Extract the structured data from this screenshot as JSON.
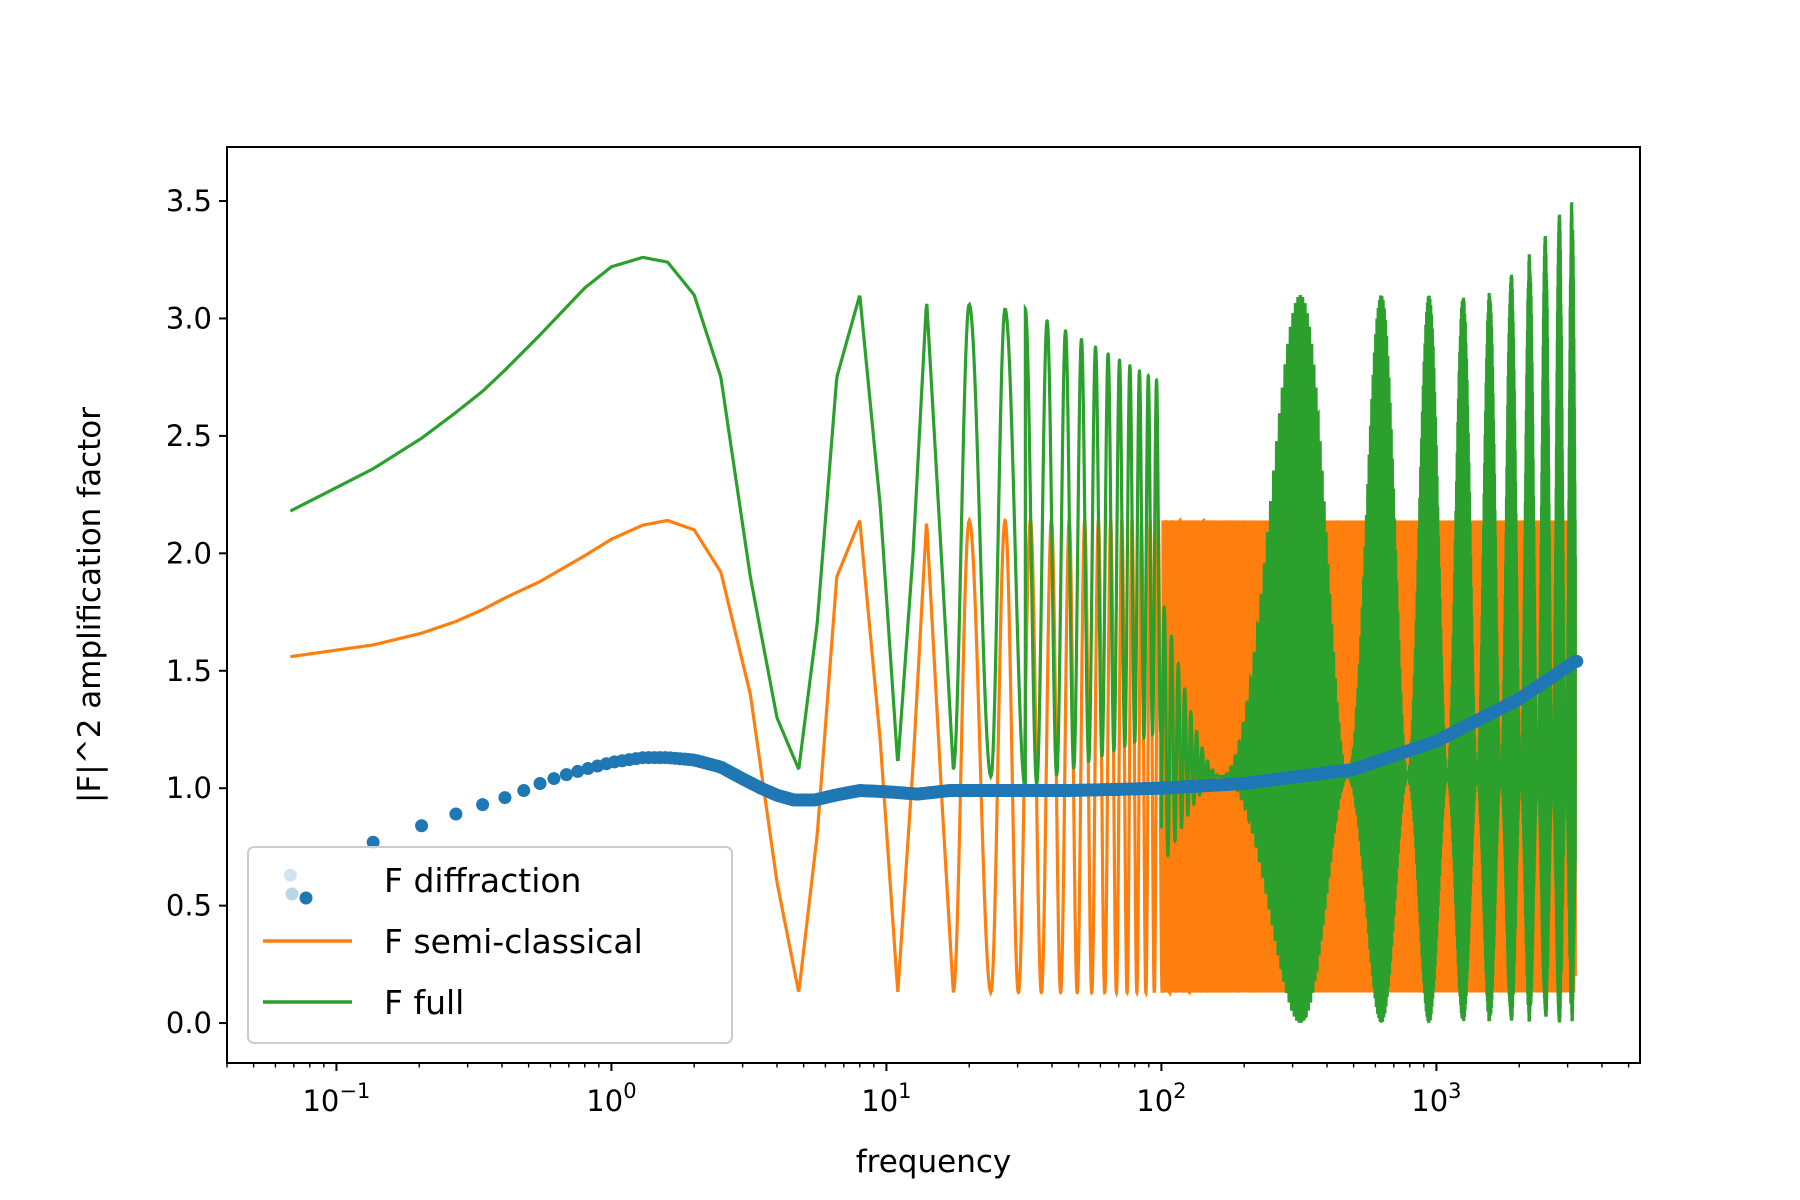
{
  "chart_data": {
    "type": "line",
    "xlabel": "frequency",
    "ylabel": "|F|^2 amplification factor",
    "x_scale": "log",
    "xlim": [
      0.04,
      5500
    ],
    "ylim": [
      -0.17,
      3.73
    ],
    "grid": false,
    "legend_position": "lower-left",
    "y_ticks": [
      "0.0",
      "0.5",
      "1.0",
      "1.5",
      "2.0",
      "2.5",
      "3.0",
      "3.5"
    ],
    "y_tick_values": [
      0.0,
      0.5,
      1.0,
      1.5,
      2.0,
      2.5,
      3.0,
      3.5
    ],
    "x_ticks": [
      {
        "value": 0.1,
        "base": "10",
        "exp": "−1"
      },
      {
        "value": 1,
        "base": "10",
        "exp": "0"
      },
      {
        "value": 10,
        "base": "10",
        "exp": "1"
      },
      {
        "value": 100,
        "base": "10",
        "exp": "2"
      },
      {
        "value": 1000,
        "base": "10",
        "exp": "3"
      }
    ],
    "x_range": [
      0.068,
      3200
    ],
    "series": [
      {
        "name": "F diffraction",
        "style": "markers",
        "color": "#1f77b4",
        "x": [
          0.068,
          0.136,
          0.204,
          0.272,
          0.34,
          0.41,
          0.48,
          0.55,
          0.65,
          0.8,
          1.0,
          1.3,
          1.6,
          2.0,
          2.5,
          3.0,
          3.5,
          4.0,
          4.6,
          5.5,
          6.5,
          8.0,
          10,
          13,
          17,
          22,
          30,
          45,
          70,
          100,
          200,
          500,
          1000,
          2000,
          3200
        ],
        "y": [
          0.63,
          0.77,
          0.84,
          0.89,
          0.93,
          0.96,
          0.99,
          1.02,
          1.05,
          1.08,
          1.11,
          1.13,
          1.13,
          1.12,
          1.09,
          1.04,
          1.0,
          0.97,
          0.95,
          0.95,
          0.97,
          0.99,
          0.985,
          0.975,
          0.99,
          0.99,
          0.99,
          0.99,
          0.995,
          1.0,
          1.02,
          1.08,
          1.2,
          1.38,
          1.54
        ]
      },
      {
        "name": "F semi-classical",
        "style": "line",
        "color": "#ff7f0e",
        "x": [
          0.068,
          0.136,
          0.204,
          0.272,
          0.34,
          0.41,
          0.55,
          0.8,
          1.0,
          1.3,
          1.6,
          2.0,
          2.5,
          3.2,
          4.0,
          4.8,
          5.6,
          6.6,
          8.0,
          9.5,
          11,
          12.5,
          14,
          16,
          17.5,
          20,
          24,
          27,
          32,
          40,
          60,
          100,
          200,
          500,
          1000,
          3200
        ],
        "y": [
          1.56,
          1.61,
          1.66,
          1.71,
          1.76,
          1.81,
          1.88,
          1.99,
          2.06,
          2.12,
          2.14,
          2.1,
          1.92,
          1.4,
          0.6,
          0.13,
          0.8,
          1.9,
          2.14,
          1.2,
          0.13,
          1.1,
          2.14,
          0.9,
          0.13,
          2.14,
          0.13,
          2.14,
          0.13,
          2.14,
          0.13,
          2.14,
          0.13,
          2.14,
          0.13,
          2.14
        ]
      },
      {
        "name": "F full",
        "style": "line",
        "color": "#2ca02c",
        "x": [
          0.068,
          0.136,
          0.204,
          0.272,
          0.34,
          0.41,
          0.55,
          0.8,
          1.0,
          1.3,
          1.6,
          2.0,
          2.5,
          3.2,
          4.0,
          4.8,
          5.6,
          6.6,
          8.0,
          9.5,
          11,
          12.5,
          14,
          16,
          17.5,
          20,
          24,
          27,
          32,
          100,
          210,
          320,
          420,
          630,
          1000,
          1500,
          2000,
          2500,
          3000,
          3200
        ],
        "y": [
          2.18,
          2.36,
          2.49,
          2.6,
          2.69,
          2.78,
          2.93,
          3.13,
          3.22,
          3.26,
          3.24,
          3.1,
          2.75,
          1.9,
          1.3,
          1.08,
          1.7,
          2.75,
          3.1,
          2.2,
          1.1,
          2.0,
          3.08,
          1.9,
          1.08,
          3.06,
          1.05,
          3.04,
          1.0,
          2.3,
          0.05,
          3.11,
          0.0,
          3.13,
          0.02,
          3.2,
          0.1,
          3.45,
          0.1,
          3.56
        ]
      }
    ]
  }
}
